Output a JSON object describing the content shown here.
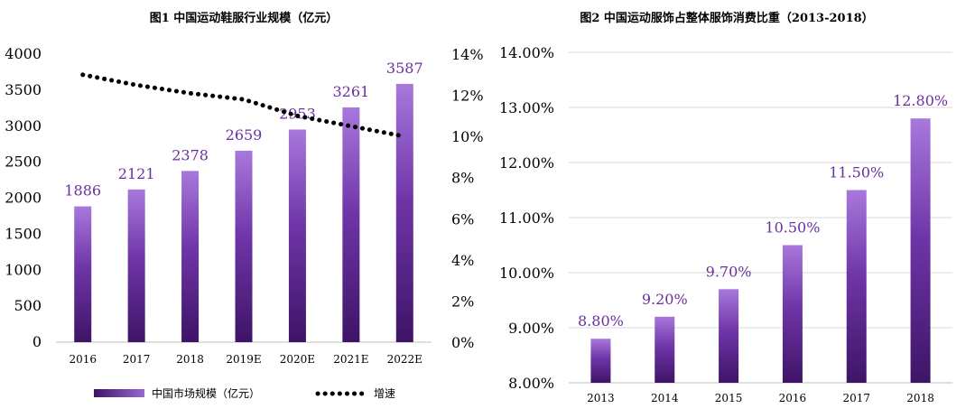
{
  "chart_data": [
    {
      "type": "bar",
      "title": "图1 中国运动鞋服行业规模（亿元）",
      "categories": [
        "2016",
        "2017",
        "2018",
        "2019E",
        "2020E",
        "2021E",
        "2022E"
      ],
      "series": [
        {
          "name": "中国市场规模（亿元）",
          "type": "bar",
          "axis": "left",
          "values": [
            1886,
            2121,
            2378,
            2659,
            2953,
            3261,
            3587
          ],
          "data_labels": [
            "1886",
            "2121",
            "2378",
            "2659",
            "2953",
            "3261",
            "3587"
          ]
        },
        {
          "name": "增速",
          "type": "line",
          "style": "dotted",
          "axis": "right",
          "values": [
            13.0,
            12.5,
            12.1,
            11.8,
            11.0,
            10.5,
            10.0
          ]
        }
      ],
      "ylim": [
        0,
        4000
      ],
      "yticks": [
        "4000",
        "3500",
        "3000",
        "2500",
        "2000",
        "1500",
        "1000",
        "500",
        "0"
      ],
      "y2lim": [
        0,
        14
      ],
      "y2ticks": [
        "14%",
        "12%",
        "10%",
        "8%",
        "6%",
        "4%",
        "2%",
        "0%"
      ],
      "legend_position": "bottom",
      "bar_color": "#5a2290",
      "line_color": "#000000"
    },
    {
      "type": "bar",
      "title": "图2 中国运动服饰占整体服饰消费比重（2013-2018）",
      "categories": [
        "2013",
        "2014",
        "2015",
        "2016",
        "2017",
        "2018"
      ],
      "values": [
        8.8,
        9.2,
        9.7,
        10.5,
        11.5,
        12.8
      ],
      "data_labels": [
        "8.80%",
        "9.20%",
        "9.70%",
        "10.50%",
        "11.50%",
        "12.80%"
      ],
      "ylim": [
        8,
        14
      ],
      "yticks": [
        "14.00%",
        "13.00%",
        "12.00%",
        "11.00%",
        "10.00%",
        "9.00%",
        "8.00%"
      ],
      "bar_color": "#5a2290"
    }
  ]
}
